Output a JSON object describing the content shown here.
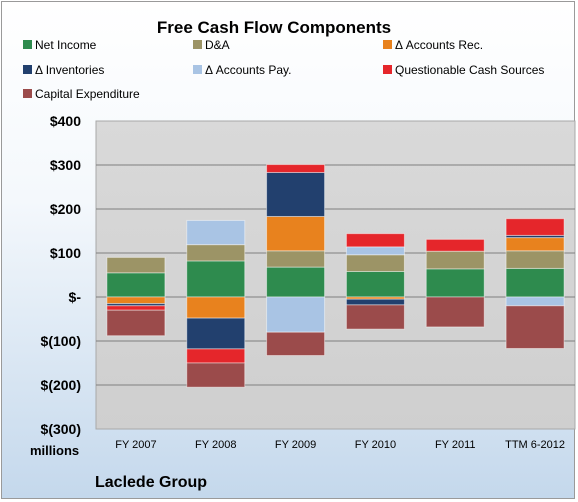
{
  "chart_data": {
    "type": "bar",
    "stacked": true,
    "title": "Free Cash Flow Components",
    "units_label": "millions",
    "company": "Laclede Group",
    "categories": [
      "FY 2007",
      "FY 2008",
      "FY 2009",
      "FY 2010",
      "FY 2011",
      "TTM 6-2012"
    ],
    "yticks": [
      "$400",
      "$300",
      "$200",
      "$100",
      "$-",
      "$(100)",
      "$(200)",
      "$(300)"
    ],
    "ylim": [
      -300,
      400
    ],
    "grid": true,
    "legend_position": "top",
    "series": [
      {
        "name": "Net Income",
        "color": "#2e8b4e",
        "values": [
          55,
          82,
          68,
          58,
          64,
          65
        ]
      },
      {
        "name": "D&A",
        "color": "#9c9466",
        "values": [
          35,
          37,
          37,
          38,
          40,
          40
        ]
      },
      {
        "name": "Δ Accounts Rec.",
        "color": "#e8821e",
        "values": [
          -15,
          -48,
          78,
          -5,
          0,
          30
        ]
      },
      {
        "name": "Δ Inventories",
        "color": "#22406e",
        "values": [
          -5,
          -70,
          100,
          -13,
          0,
          5
        ]
      },
      {
        "name": "Δ Accounts Pay.",
        "color": "#a9c4e4",
        "values": [
          0,
          55,
          -80,
          18,
          0,
          -20
        ]
      },
      {
        "name": "Questionable Cash Sources",
        "color": "#e5262b",
        "values": [
          -10,
          -32,
          18,
          30,
          27,
          38
        ]
      },
      {
        "name": "Capital Expenditure",
        "color": "#9b4b4b",
        "values": [
          -58,
          -55,
          -53,
          -55,
          -68,
          -97
        ]
      }
    ]
  }
}
